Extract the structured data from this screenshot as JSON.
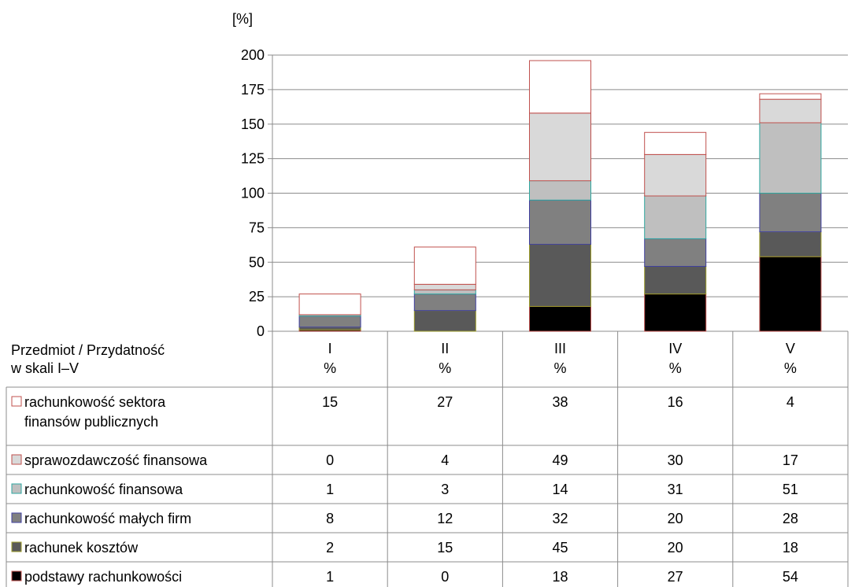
{
  "chart_data": {
    "type": "bar",
    "stacked": true,
    "ylabel": "[%]",
    "ylim": [
      0,
      200
    ],
    "yticks": [
      0,
      25,
      50,
      75,
      100,
      125,
      150,
      175,
      200
    ],
    "grid": true,
    "categories": [
      "I",
      "II",
      "III",
      "IV",
      "V"
    ],
    "category_unit": "%",
    "table_header": [
      "Przedmiot / Przydatność",
      "w skali I–V"
    ],
    "series": [
      {
        "name": "podstawy rachunkowości",
        "name_lines": [
          "podstawy rachunkowości"
        ],
        "values": [
          1,
          0,
          18,
          27,
          54
        ],
        "fill": "#000000",
        "stroke": "#c0504d"
      },
      {
        "name": "rachunek kosztów",
        "name_lines": [
          "rachunek kosztów"
        ],
        "values": [
          2,
          15,
          45,
          20,
          18
        ],
        "fill": "#595959",
        "stroke": "#9b9b2a"
      },
      {
        "name": "rachunkowość małych firm",
        "name_lines": [
          "rachunkowość małych firm"
        ],
        "values": [
          8,
          12,
          32,
          20,
          28
        ],
        "fill": "#808080",
        "stroke": "#4040a0"
      },
      {
        "name": "rachunkowość finansowa",
        "name_lines": [
          "rachunkowość finansowa"
        ],
        "values": [
          1,
          3,
          14,
          31,
          51
        ],
        "fill": "#bfbfbf",
        "stroke": "#2fa7a0"
      },
      {
        "name": "sprawozdawczość finansowa",
        "name_lines": [
          "sprawozdawczość finansowa"
        ],
        "values": [
          0,
          4,
          49,
          30,
          17
        ],
        "fill": "#d9d9d9",
        "stroke": "#c0504d"
      },
      {
        "name": "rachunkowość sektora finansów publicznych",
        "name_lines": [
          "rachunkowość sektora",
          "finansów publicznych"
        ],
        "values": [
          15,
          27,
          38,
          16,
          4
        ],
        "fill": "#ffffff",
        "stroke": "#c0504d"
      }
    ]
  }
}
